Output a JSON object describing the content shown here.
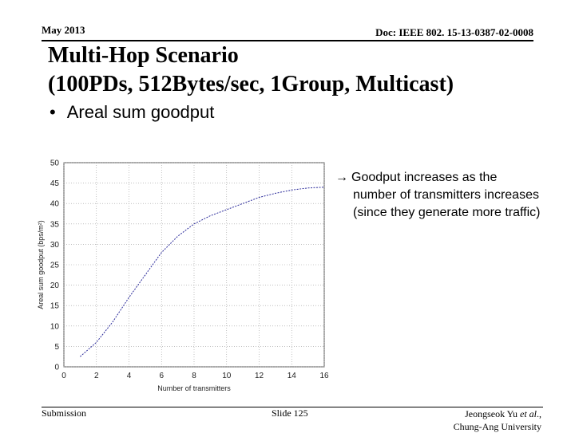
{
  "header": {
    "date": "May 2013",
    "doc": "Doc: IEEE 802. 15-13-0387-02-0008"
  },
  "title": {
    "line1": "Multi-Hop Scenario",
    "line2": "(100PDs, 512Bytes/sec, 1Group, Multicast)"
  },
  "bullet": {
    "marker": "•",
    "text": "Areal sum goodput"
  },
  "note": {
    "arrow": "→",
    "line1": "Goodput increases as the",
    "line2": "number of transmitters increases",
    "line3": "(since they generate more traffic)"
  },
  "footer": {
    "left": "Submission",
    "center": "Slide 125",
    "right_line1": "Jeongseok Yu ",
    "right_etal": "et al",
    "right_comma": ".,",
    "right_line2": "Chung-Ang University"
  },
  "chart_data": {
    "type": "line",
    "xlabel": "Number of transmitters",
    "ylabel": "Areal sum goodput (bps/m²)",
    "xlim": [
      0,
      16
    ],
    "ylim": [
      0,
      50
    ],
    "xticks": [
      0,
      2,
      4,
      6,
      8,
      10,
      12,
      14,
      16
    ],
    "yticks": [
      0,
      5,
      10,
      15,
      20,
      25,
      30,
      35,
      40,
      45,
      50
    ],
    "grid": true,
    "line_color": "#2a2a9a",
    "series": [
      {
        "x": [
          1,
          2,
          3,
          4,
          5,
          6,
          7,
          8,
          9,
          10,
          11,
          12,
          13,
          14,
          15,
          16
        ],
        "values": [
          2.5,
          6,
          11,
          17,
          22.5,
          28,
          32,
          35,
          37,
          38.5,
          40,
          41.5,
          42.5,
          43.3,
          43.8,
          44
        ]
      }
    ]
  }
}
